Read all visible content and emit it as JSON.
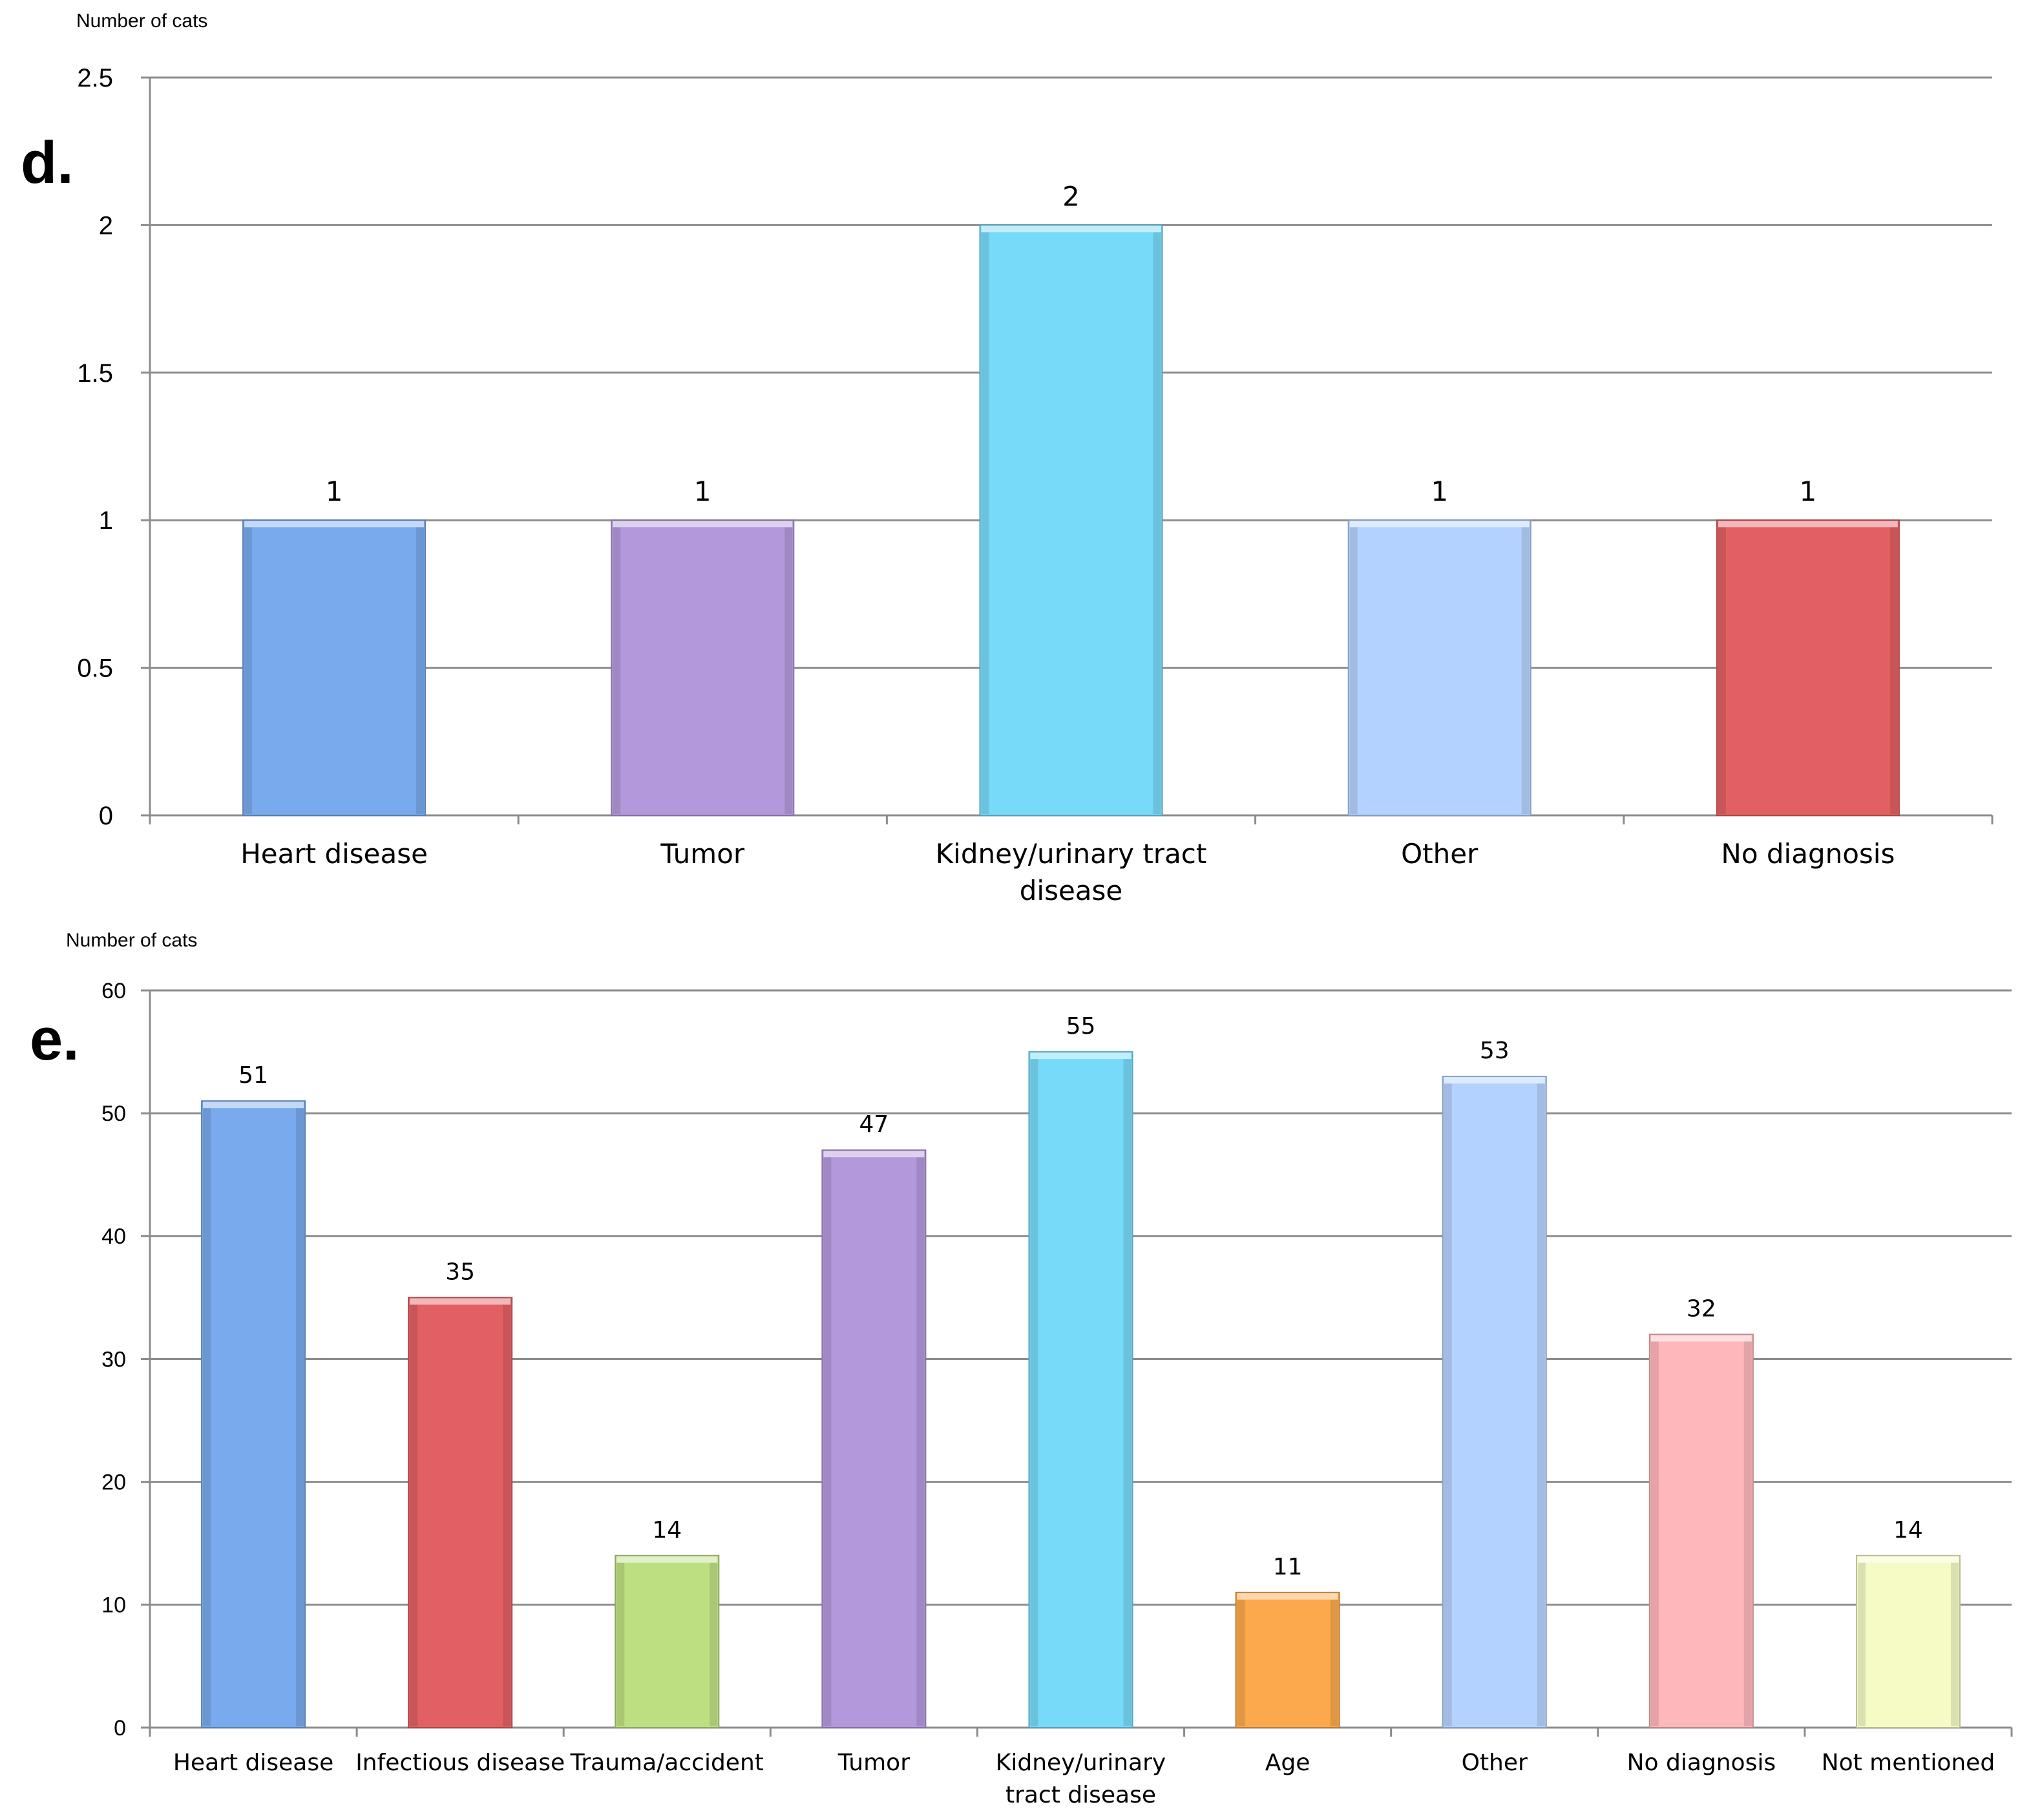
{
  "chart_data": [
    {
      "type": "bar",
      "panel_label": "d.",
      "ylabel": "Number of cats",
      "xlabel": "",
      "ylim": [
        0,
        2.5
      ],
      "y_ticks": [
        0,
        0.5,
        1,
        1.5,
        2,
        2.5
      ],
      "y_tick_labels": [
        "0",
        "0.5",
        "1",
        "1.5",
        "2",
        "2.5"
      ],
      "grid": true,
      "legend": "none",
      "categories": [
        [
          "Heart disease"
        ],
        [
          "Tumor"
        ],
        [
          "Kidney/urinary tract",
          "disease"
        ],
        [
          "Other"
        ],
        [
          "No diagnosis"
        ]
      ],
      "values": [
        1,
        1,
        2,
        1,
        1
      ],
      "value_labels": [
        "1",
        "1",
        "2",
        "1",
        "1"
      ],
      "colors": [
        "#79aaed",
        "#b399db",
        "#77daf9",
        "#b4d2ff",
        "#e26063"
      ]
    },
    {
      "type": "bar",
      "panel_label": "e.",
      "ylabel": "Number of cats",
      "xlabel": "",
      "ylim": [
        0,
        60
      ],
      "y_ticks": [
        0,
        10,
        20,
        30,
        40,
        50,
        60
      ],
      "y_tick_labels": [
        "0",
        "10",
        "20",
        "30",
        "40",
        "50",
        "60"
      ],
      "grid": true,
      "legend": "none",
      "categories": [
        [
          "Heart disease"
        ],
        [
          "Infectious disease"
        ],
        [
          "Trauma/accident"
        ],
        [
          "Tumor"
        ],
        [
          "Kidney/urinary",
          "tract disease"
        ],
        [
          "Age"
        ],
        [
          "Other"
        ],
        [
          "No diagnosis"
        ],
        [
          "Not mentioned"
        ]
      ],
      "values": [
        51,
        35,
        14,
        47,
        55,
        11,
        53,
        32,
        14
      ],
      "value_labels": [
        "51",
        "35",
        "14",
        "47",
        "55",
        "11",
        "53",
        "32",
        "14"
      ],
      "colors": [
        "#79aaed",
        "#e26063",
        "#bddf82",
        "#b399db",
        "#77daf9",
        "#fba94c",
        "#b4d2ff",
        "#feb7bb",
        "#f6fbc5"
      ]
    }
  ]
}
